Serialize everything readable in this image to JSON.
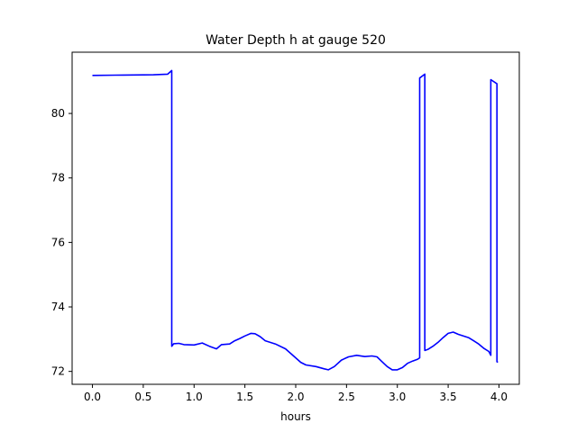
{
  "chart_data": {
    "type": "line",
    "title": "Water Depth h at gauge 520",
    "xlabel": "hours",
    "ylabel": "",
    "xlim": [
      -0.2,
      4.2
    ],
    "ylim": [
      71.6,
      81.9
    ],
    "xticks": [
      0.0,
      0.5,
      1.0,
      1.5,
      2.0,
      2.5,
      3.0,
      3.5,
      4.0
    ],
    "xtick_labels": [
      "0.0",
      "0.5",
      "1.0",
      "1.5",
      "2.0",
      "2.5",
      "3.0",
      "3.5",
      "4.0"
    ],
    "yticks": [
      72,
      74,
      76,
      78,
      80
    ],
    "ytick_labels": [
      "72",
      "74",
      "76",
      "78",
      "80"
    ],
    "grid": false,
    "series": [
      {
        "color": "#0000ff",
        "x": [
          0.0,
          0.3,
          0.6,
          0.74,
          0.78,
          0.78,
          0.8,
          0.85,
          0.9,
          1.0,
          1.08,
          1.15,
          1.22,
          1.27,
          1.35,
          1.4,
          1.45,
          1.5,
          1.56,
          1.6,
          1.65,
          1.7,
          1.8,
          1.9,
          2.0,
          2.05,
          2.1,
          2.2,
          2.28,
          2.32,
          2.38,
          2.45,
          2.52,
          2.6,
          2.68,
          2.75,
          2.8,
          2.85,
          2.9,
          2.95,
          3.0,
          3.05,
          3.1,
          3.15,
          3.2,
          3.22,
          3.22,
          3.27,
          3.27,
          3.3,
          3.35,
          3.4,
          3.45,
          3.5,
          3.55,
          3.6,
          3.7,
          3.75,
          3.8,
          3.85,
          3.9,
          3.92,
          3.92,
          3.98,
          3.98,
          3.99
        ],
        "y": [
          81.18,
          81.19,
          81.2,
          81.22,
          81.33,
          72.78,
          72.86,
          72.87,
          72.83,
          72.82,
          72.88,
          72.78,
          72.7,
          72.83,
          72.85,
          72.95,
          73.02,
          73.1,
          73.18,
          73.17,
          73.08,
          72.95,
          72.85,
          72.7,
          72.42,
          72.28,
          72.2,
          72.15,
          72.08,
          72.05,
          72.15,
          72.35,
          72.45,
          72.5,
          72.46,
          72.48,
          72.45,
          72.3,
          72.15,
          72.05,
          72.05,
          72.12,
          72.25,
          72.32,
          72.38,
          72.42,
          81.1,
          81.22,
          72.65,
          72.68,
          72.78,
          72.9,
          73.05,
          73.18,
          73.22,
          73.15,
          73.05,
          72.95,
          72.85,
          72.72,
          72.62,
          72.5,
          81.05,
          80.92,
          72.3,
          72.28
        ]
      }
    ]
  }
}
